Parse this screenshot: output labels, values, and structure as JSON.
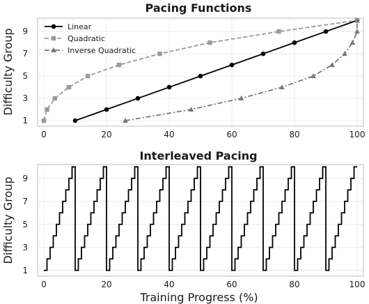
{
  "chart_data": [
    {
      "type": "line",
      "title": "Pacing Functions",
      "ylabel": "Difficulty Group",
      "xlabel": "",
      "xlim": [
        -2,
        102
      ],
      "ylim": [
        0.5,
        10.2
      ],
      "xticks": [
        0,
        20,
        40,
        60,
        80,
        100
      ],
      "yticks": [
        1,
        3,
        5,
        7,
        9
      ],
      "grid": true,
      "legend_position": "top-left",
      "series": [
        {
          "name": "Linear",
          "color": "#000000",
          "line_style": "solid",
          "marker": "circle",
          "x": [
            10,
            20,
            30,
            40,
            50,
            60,
            70,
            80,
            90,
            100
          ],
          "y": [
            1,
            2,
            3,
            4,
            5,
            6,
            7,
            8,
            9,
            10
          ]
        },
        {
          "name": "Quadratic",
          "color": "#999999",
          "line_style": "dashed",
          "marker": "square",
          "x": [
            0,
            1,
            3.5,
            8,
            14,
            24,
            37,
            53,
            75,
            100
          ],
          "y": [
            1,
            2,
            3,
            4,
            5,
            6,
            7,
            8,
            9,
            10
          ]
        },
        {
          "name": "Inverse Quadratic",
          "color": "#777777",
          "line_style": "dashdot",
          "marker": "triangle",
          "x": [
            26,
            47,
            63,
            76,
            86,
            92,
            96,
            98.5,
            100,
            100
          ],
          "y": [
            1,
            2,
            3,
            4,
            5,
            6,
            7,
            8,
            9,
            10
          ]
        }
      ]
    },
    {
      "type": "line",
      "title": "Interleaved Pacing",
      "ylabel": "Difficulty Group",
      "xlabel": "Training Progress (%)",
      "xlim": [
        -2,
        102
      ],
      "ylim": [
        0.5,
        10.2
      ],
      "xticks": [
        0,
        20,
        40,
        60,
        80,
        100
      ],
      "yticks": [
        1,
        3,
        5,
        7,
        9
      ],
      "grid": true,
      "series": [
        {
          "color": "#000000",
          "line_style": "solid",
          "step": true,
          "cycles": 10,
          "cycle_length": 10,
          "levels": [
            1,
            2,
            3,
            4,
            5,
            6,
            7,
            8,
            9,
            10
          ]
        }
      ]
    }
  ]
}
